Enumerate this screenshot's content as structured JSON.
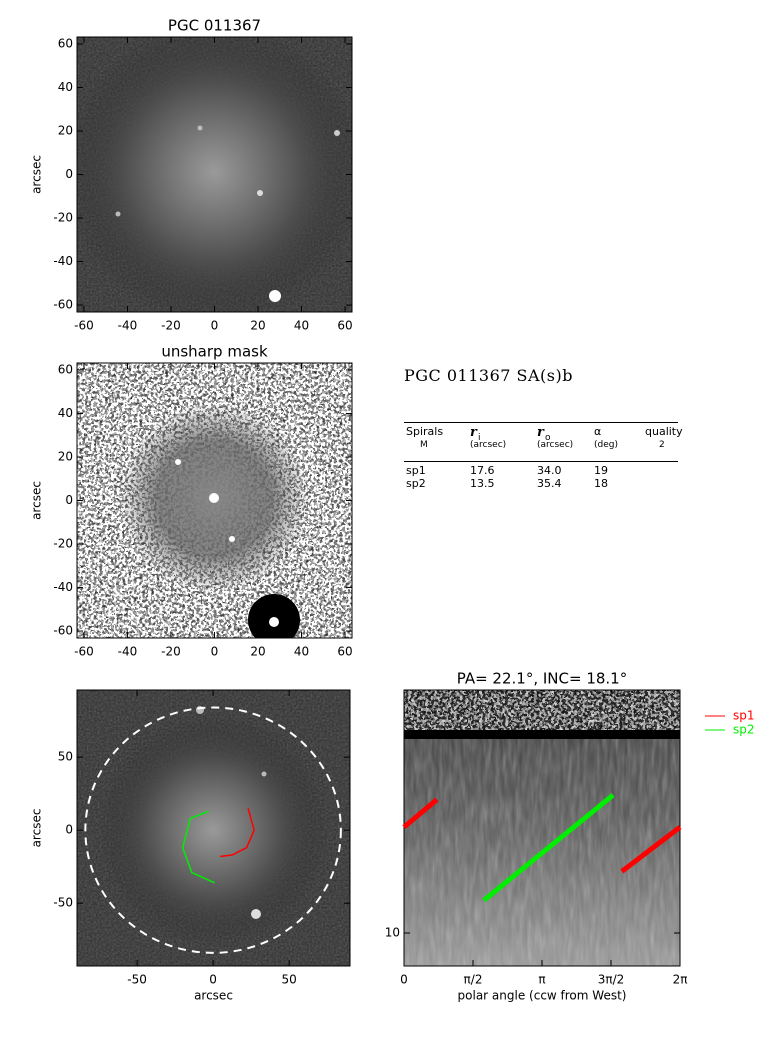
{
  "chart_data": [
    {
      "type": "image",
      "title": "PGC 011367",
      "ylabel": "arcsec",
      "xlim": [
        -63.2,
        63.2
      ],
      "ylim": [
        -63.2,
        63.2
      ],
      "xticks": [
        -60,
        -40,
        -20,
        0,
        20,
        40,
        60
      ],
      "yticks": [
        -60,
        -40,
        -20,
        0,
        20,
        40,
        60
      ]
    },
    {
      "type": "image",
      "title": "unsharp mask",
      "ylabel": "arcsec",
      "xlim": [
        -63.2,
        63.2
      ],
      "ylim": [
        -63.2,
        63.2
      ],
      "xticks": [
        -60,
        -40,
        -20,
        0,
        20,
        40,
        60
      ],
      "yticks": [
        -60,
        -40,
        -20,
        0,
        20,
        40,
        60
      ]
    },
    {
      "type": "image",
      "xlabel": "arcsec",
      "ylabel": "arcsec",
      "xlim": [
        -89.5,
        90
      ],
      "ylim": [
        -93,
        96
      ],
      "xticks": [
        -50,
        0,
        50
      ],
      "yticks": [
        -50,
        0,
        50
      ],
      "circle_radius": 84,
      "series": [
        {
          "color": "#ff0000",
          "x": [
            23,
            27,
            22,
            12.5,
            4.6
          ],
          "y": [
            15,
            0,
            -12,
            -17,
            -18
          ]
        },
        {
          "color": "#00ee00",
          "x": [
            -3,
            -15,
            -20,
            -14,
            1
          ],
          "y": [
            13,
            8,
            -12,
            -29,
            -36
          ]
        }
      ]
    },
    {
      "type": "line",
      "title": "PA= 22.1°, INC= 18.1°",
      "xlabel": "polar angle (ccw from West)",
      "xlim": [
        0,
        6.2832
      ],
      "ylim": [
        7.39,
        92.8
      ],
      "ylog": true,
      "xticks": [
        {
          "value": 0,
          "label": "0"
        },
        {
          "value": 1.5708,
          "label": "π/2"
        },
        {
          "value": 3.1416,
          "label": "π"
        },
        {
          "value": 4.7124,
          "label": "3π/2"
        },
        {
          "value": 6.2832,
          "label": "2π"
        }
      ],
      "yticks": [
        10
      ],
      "series": [
        {
          "name": "sp1",
          "color": "#ff0000",
          "x": [
            4.96,
            6.2832,
            null,
            0,
            0.75
          ],
          "y": [
            17.6,
            26.4,
            null,
            26.4,
            34
          ]
        },
        {
          "name": "sp2",
          "color": "#00ee00",
          "x": [
            1.82,
            4.76
          ],
          "y": [
            13.5,
            35.4
          ]
        }
      ]
    }
  ],
  "table": {
    "title": "PGC 011367  SA(s)b",
    "header_cells": [
      {
        "text": "Spirals"
      },
      {
        "text": "r",
        "sub": "i"
      },
      {
        "text": "r",
        "sub": "o"
      },
      {
        "text": "α"
      },
      {
        "text": "quality"
      }
    ],
    "units": [
      "M",
      "(arcsec)",
      "(arcsec)",
      "(deg)",
      "2"
    ],
    "rows": [
      [
        "sp1",
        "17.6",
        "34.0",
        "19"
      ],
      [
        "sp2",
        "13.5",
        "35.4",
        "18"
      ]
    ]
  }
}
